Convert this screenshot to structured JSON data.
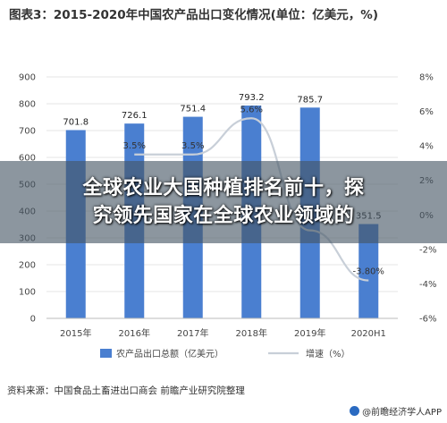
{
  "chart_data": {
    "type": "bar",
    "title": "图表3：2015-2020年中国农产品出口变化情况(单位：亿美元，%)",
    "categories": [
      "2015年",
      "2016年",
      "2017年",
      "2018年",
      "2019年",
      "2020H1"
    ],
    "series": [
      {
        "name": "农产品出口总额（亿美元）",
        "type": "bar",
        "axis": "left",
        "color": "#4a7fd0",
        "values": [
          701.8,
          726.1,
          751.4,
          793.2,
          785.7,
          351.5
        ],
        "labels": [
          "701.8",
          "726.1",
          "751.4",
          "793.2",
          "785.7",
          "351.5"
        ]
      },
      {
        "name": "增速（%）",
        "type": "line",
        "axis": "right",
        "color": "#c8cfd8",
        "values": [
          null,
          3.5,
          3.5,
          5.6,
          -0.9,
          -3.8
        ],
        "labels": [
          "",
          "3.5%",
          "3.5%",
          "5.6%",
          "",
          "-3.80%"
        ]
      }
    ],
    "y_left": {
      "ticks": [
        0,
        100,
        200,
        300,
        400,
        500,
        600,
        700,
        800,
        900
      ],
      "ylim": [
        0,
        900
      ]
    },
    "y_right": {
      "ticks": [
        "-6%",
        "-4%",
        "-2%",
        "0%",
        "2%",
        "4%",
        "6%",
        "8%"
      ],
      "ylim": [
        -6,
        8
      ]
    },
    "grid": true,
    "legend": "bottom"
  },
  "overlay": {
    "line1": "全球农业大国种植排名前十，探",
    "line2": "究领先国家在全球农业领域的"
  },
  "source": "资料来源：中国食品土畜进出口商会 前瞻产业研究院整理",
  "watermark": "@前瞻经济学人APP"
}
